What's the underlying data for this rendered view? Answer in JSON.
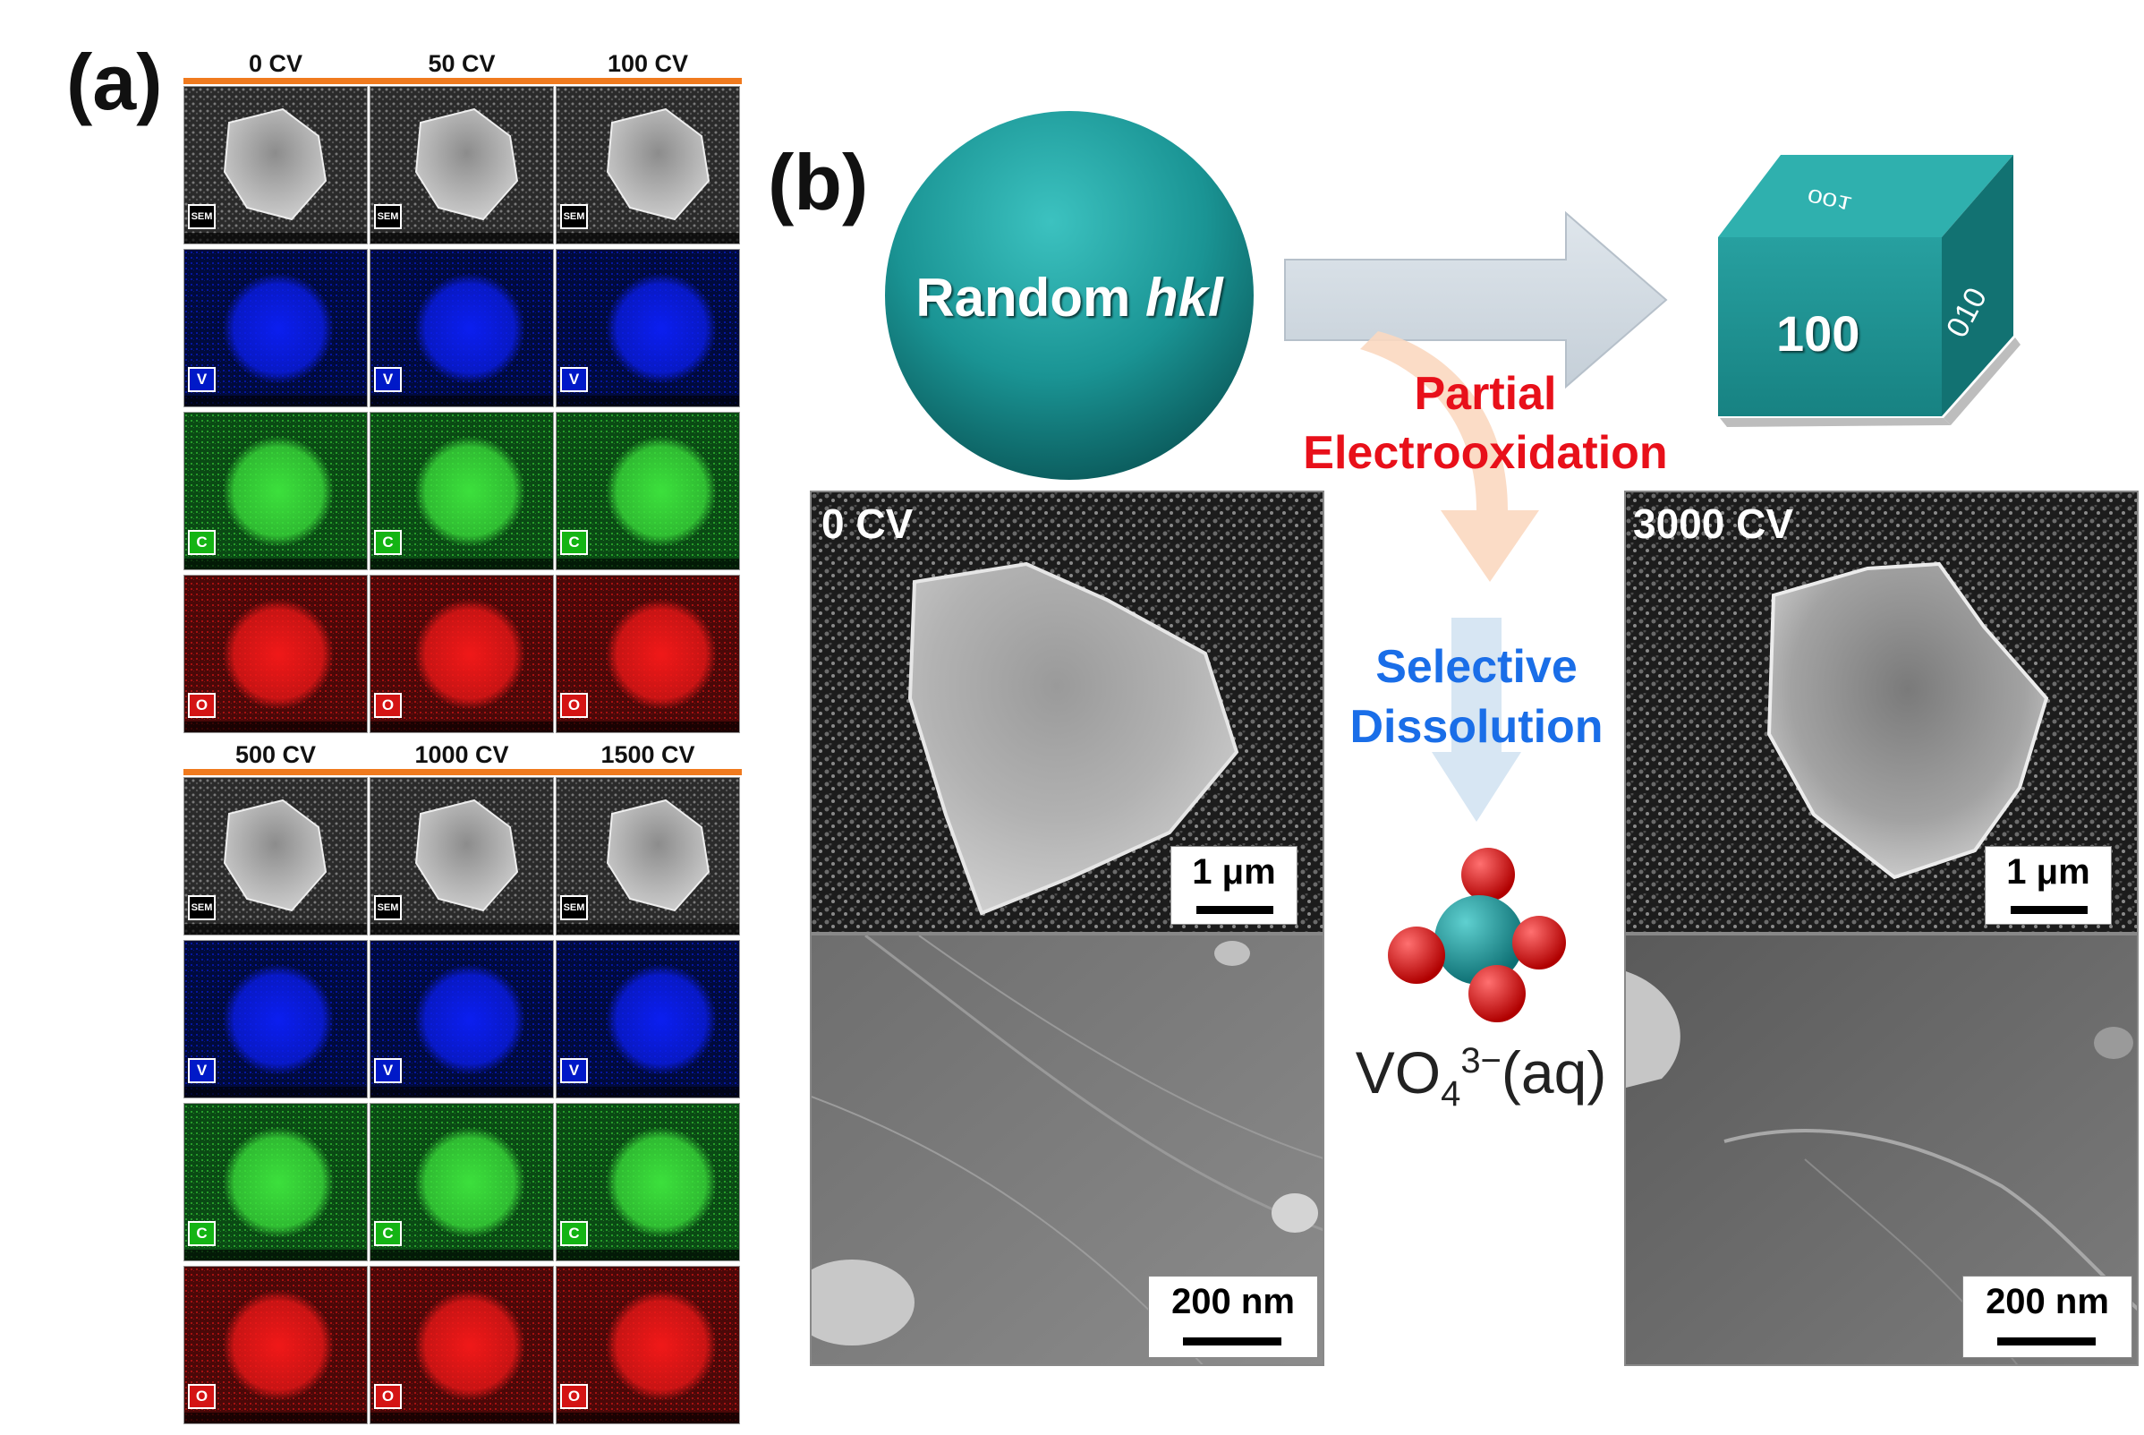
{
  "panel_a": {
    "label": "(a)",
    "top_columns": [
      "0 CV",
      "50 CV",
      "100 CV"
    ],
    "bottom_columns": [
      "500 CV",
      "1000 CV",
      "1500 CV"
    ],
    "row_tags": [
      "SEM",
      "V",
      "C",
      "O"
    ]
  },
  "panel_b": {
    "label": "(b)",
    "sphere_text_prefix": "Random ",
    "sphere_text_italic": "hkl",
    "cube_front": "100",
    "cube_side": "010",
    "cube_top": "001",
    "step1_line1": "Partial",
    "step1_line2": "Electrooxidation",
    "step2_line1": "Selective",
    "step2_line2": "Dissolution",
    "ion_base": "VO",
    "ion_sub": "4",
    "ion_sup": "3−",
    "ion_suffix": "(aq)",
    "left_sem_label": "0 CV",
    "right_sem_label": "3000 CV",
    "scale_low_mag": "1 μm",
    "scale_high_mag": "200 nm"
  },
  "colors": {
    "orange_bar": "#f07a1e",
    "teal": "#1e9a9a",
    "red_text": "#e8101a",
    "blue_text": "#1a6ee8",
    "arrow_grey": "#d0d8e0"
  }
}
